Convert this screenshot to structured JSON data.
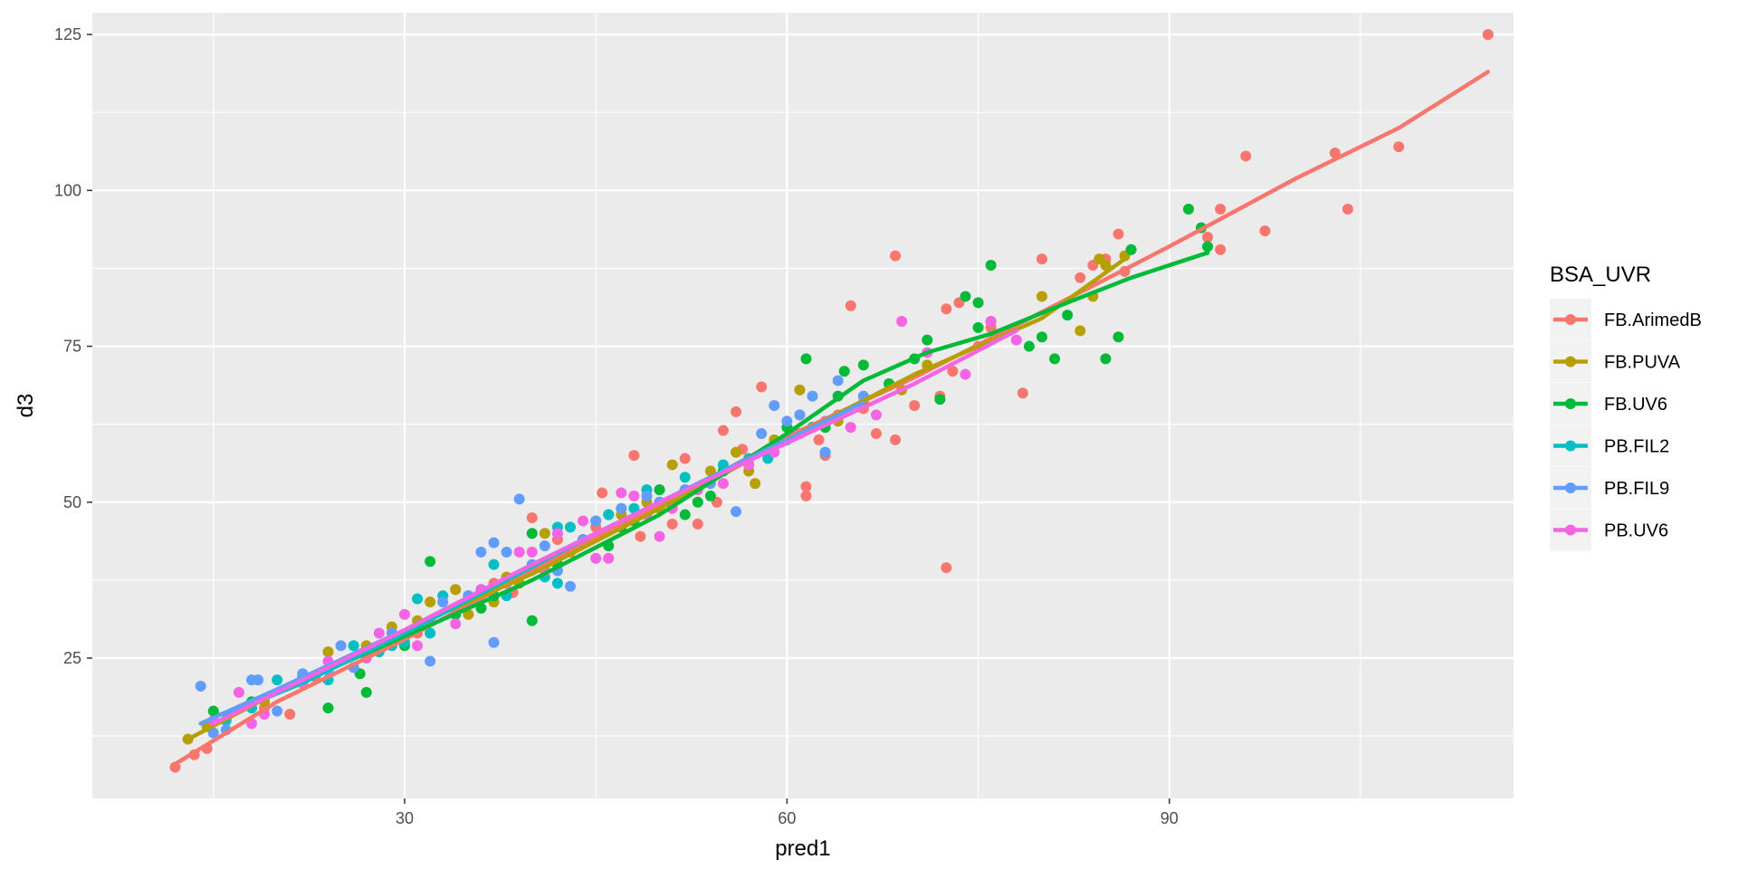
{
  "chart_data": {
    "type": "scatter",
    "xlabel": "pred1",
    "ylabel": "d3",
    "xlim": [
      5.5,
      117
    ],
    "ylim": [
      2.5,
      128.5
    ],
    "x_ticks": [
      30,
      60,
      90
    ],
    "y_ticks": [
      25,
      50,
      75,
      100,
      125
    ],
    "grid": true,
    "legend": {
      "title": "BSA_UVR",
      "position": "right"
    },
    "series": [
      {
        "name": "FB.ArimedB",
        "color": "#F8766D",
        "points": [
          [
            12,
            7.5
          ],
          [
            13.5,
            9.5
          ],
          [
            14.5,
            10.5
          ],
          [
            19,
            17
          ],
          [
            21,
            16
          ],
          [
            23,
            22
          ],
          [
            27,
            26
          ],
          [
            31,
            29
          ],
          [
            34,
            36
          ],
          [
            37,
            37
          ],
          [
            38.5,
            35.5
          ],
          [
            40,
            47.5
          ],
          [
            42,
            44
          ],
          [
            45,
            46
          ],
          [
            45.5,
            51.5
          ],
          [
            48,
            57.5
          ],
          [
            48.5,
            44.5
          ],
          [
            50,
            52
          ],
          [
            51,
            46.5
          ],
          [
            52,
            57
          ],
          [
            53,
            46.5
          ],
          [
            54.5,
            50
          ],
          [
            55,
            61.5
          ],
          [
            56,
            64.5
          ],
          [
            56.5,
            58.5
          ],
          [
            58,
            68.5
          ],
          [
            60,
            60
          ],
          [
            61,
            64
          ],
          [
            61.5,
            52.5
          ],
          [
            61.5,
            51
          ],
          [
            62.5,
            60
          ],
          [
            63,
            57.5
          ],
          [
            64,
            64
          ],
          [
            65,
            81.5
          ],
          [
            66,
            65
          ],
          [
            67,
            61
          ],
          [
            68.5,
            60
          ],
          [
            68.5,
            89.5
          ],
          [
            70,
            65.5
          ],
          [
            72,
            67
          ],
          [
            72.5,
            81
          ],
          [
            73,
            71
          ],
          [
            73.5,
            82
          ],
          [
            75,
            75
          ],
          [
            76,
            78
          ],
          [
            78.5,
            67.5
          ],
          [
            80,
            89
          ],
          [
            83,
            86
          ],
          [
            84,
            88
          ],
          [
            85,
            89
          ],
          [
            86,
            93
          ],
          [
            86.5,
            87
          ],
          [
            72.5,
            39.5
          ],
          [
            93,
            92.5
          ],
          [
            94,
            90.5
          ],
          [
            94,
            97
          ],
          [
            96,
            105.5
          ],
          [
            97.5,
            93.5
          ],
          [
            103,
            106
          ],
          [
            104,
            97
          ],
          [
            108,
            107
          ],
          [
            115,
            125
          ]
        ]
      },
      {
        "name": "FB.PUVA",
        "color": "#B79F00",
        "points": [
          [
            13,
            12
          ],
          [
            14.5,
            14
          ],
          [
            19,
            18
          ],
          [
            22,
            21
          ],
          [
            24,
            26
          ],
          [
            27,
            27
          ],
          [
            29,
            30
          ],
          [
            31,
            31
          ],
          [
            32,
            34
          ],
          [
            34,
            36
          ],
          [
            35,
            32
          ],
          [
            37,
            34
          ],
          [
            38,
            38
          ],
          [
            39,
            37
          ],
          [
            41,
            45
          ],
          [
            43,
            42
          ],
          [
            44,
            44
          ],
          [
            46,
            48
          ],
          [
            47,
            48
          ],
          [
            49,
            50
          ],
          [
            50,
            49
          ],
          [
            51,
            56
          ],
          [
            52,
            52
          ],
          [
            54,
            55
          ],
          [
            56,
            58
          ],
          [
            57,
            55
          ],
          [
            57.5,
            53
          ],
          [
            59,
            60
          ],
          [
            61,
            68
          ],
          [
            62,
            62
          ],
          [
            64,
            63
          ],
          [
            66,
            66
          ],
          [
            69,
            68
          ],
          [
            71,
            72
          ],
          [
            76,
            79
          ],
          [
            80,
            83
          ],
          [
            83,
            77.5
          ],
          [
            84,
            83
          ],
          [
            84.5,
            89
          ],
          [
            85,
            88
          ],
          [
            86.5,
            89.5
          ]
        ]
      },
      {
        "name": "FB.UV6",
        "color": "#00BA38",
        "points": [
          [
            15,
            16.5
          ],
          [
            18,
            18
          ],
          [
            22,
            22
          ],
          [
            24,
            17
          ],
          [
            26.5,
            22.5
          ],
          [
            27,
            19.5
          ],
          [
            30,
            27
          ],
          [
            32,
            40.5
          ],
          [
            34,
            32
          ],
          [
            36,
            33
          ],
          [
            37,
            35
          ],
          [
            38,
            37
          ],
          [
            40,
            31
          ],
          [
            40,
            45
          ],
          [
            42,
            40
          ],
          [
            44,
            44
          ],
          [
            46,
            43
          ],
          [
            47,
            46
          ],
          [
            48,
            47
          ],
          [
            50,
            52
          ],
          [
            52,
            48
          ],
          [
            53,
            50
          ],
          [
            54,
            51
          ],
          [
            55,
            55
          ],
          [
            57,
            57
          ],
          [
            60,
            62
          ],
          [
            61.5,
            73
          ],
          [
            62,
            62
          ],
          [
            63,
            62
          ],
          [
            64,
            67
          ],
          [
            64.5,
            71
          ],
          [
            66,
            72
          ],
          [
            68,
            69
          ],
          [
            70,
            73
          ],
          [
            71,
            76
          ],
          [
            72,
            66.5
          ],
          [
            74,
            83
          ],
          [
            75,
            82
          ],
          [
            75,
            78
          ],
          [
            76,
            88
          ],
          [
            79,
            75
          ],
          [
            80,
            76.5
          ],
          [
            81,
            73
          ],
          [
            82,
            80
          ],
          [
            85,
            73
          ],
          [
            86,
            76.5
          ],
          [
            87,
            90.5
          ],
          [
            91.5,
            97
          ],
          [
            92.5,
            94
          ],
          [
            93,
            91
          ]
        ]
      },
      {
        "name": "PB.FIL2",
        "color": "#00BFC4",
        "points": [
          [
            16,
            15
          ],
          [
            18,
            17
          ],
          [
            20,
            21.5
          ],
          [
            22,
            22
          ],
          [
            24,
            21.5
          ],
          [
            26,
            27
          ],
          [
            28,
            26
          ],
          [
            29,
            27
          ],
          [
            30,
            27.5
          ],
          [
            31,
            34.5
          ],
          [
            32,
            29
          ],
          [
            33,
            35
          ],
          [
            35,
            35
          ],
          [
            36,
            36
          ],
          [
            37,
            40
          ],
          [
            38,
            35
          ],
          [
            41,
            38
          ],
          [
            42,
            37
          ],
          [
            42,
            46
          ],
          [
            43,
            46
          ],
          [
            44,
            44
          ],
          [
            45,
            47
          ],
          [
            46,
            48
          ],
          [
            48,
            49
          ],
          [
            49,
            52
          ],
          [
            50,
            50
          ],
          [
            52,
            54
          ],
          [
            55,
            56
          ],
          [
            57,
            57
          ],
          [
            58.5,
            57
          ],
          [
            60,
            60
          ],
          [
            62,
            62
          ],
          [
            63,
            58
          ]
        ]
      },
      {
        "name": "PB.FIL9",
        "color": "#619CFF",
        "points": [
          [
            14,
            20.5
          ],
          [
            15,
            13
          ],
          [
            16,
            13.5
          ],
          [
            18,
            21.5
          ],
          [
            18.5,
            21.5
          ],
          [
            20,
            16.5
          ],
          [
            22,
            22.5
          ],
          [
            24,
            23
          ],
          [
            25,
            27
          ],
          [
            26,
            23.5
          ],
          [
            29,
            29
          ],
          [
            31,
            30
          ],
          [
            32,
            24.5
          ],
          [
            33,
            34
          ],
          [
            35,
            35
          ],
          [
            36,
            42
          ],
          [
            37,
            43.5
          ],
          [
            37,
            27.5
          ],
          [
            38,
            42
          ],
          [
            39,
            50.5
          ],
          [
            40,
            40
          ],
          [
            41,
            43
          ],
          [
            42,
            39
          ],
          [
            43,
            36.5
          ],
          [
            44,
            44
          ],
          [
            45,
            47
          ],
          [
            47,
            49
          ],
          [
            49,
            51
          ],
          [
            50,
            50
          ],
          [
            52,
            52
          ],
          [
            54,
            53
          ],
          [
            56,
            48.5
          ],
          [
            58,
            61
          ],
          [
            59,
            65.5
          ],
          [
            60,
            63
          ],
          [
            61,
            64
          ],
          [
            62,
            67
          ],
          [
            63,
            58
          ],
          [
            64,
            69.5
          ],
          [
            66,
            67
          ]
        ]
      },
      {
        "name": "PB.UV6",
        "color": "#F564E3",
        "points": [
          [
            15,
            15
          ],
          [
            17,
            19.5
          ],
          [
            18,
            14.5
          ],
          [
            19,
            16
          ],
          [
            22,
            21
          ],
          [
            24,
            24.5
          ],
          [
            27,
            25
          ],
          [
            28,
            29
          ],
          [
            30,
            32
          ],
          [
            31,
            27
          ],
          [
            32,
            31
          ],
          [
            34,
            30.5
          ],
          [
            36,
            36
          ],
          [
            38,
            37
          ],
          [
            39,
            42
          ],
          [
            40,
            42
          ],
          [
            41,
            39
          ],
          [
            42,
            45
          ],
          [
            44,
            47
          ],
          [
            45,
            41
          ],
          [
            46,
            41
          ],
          [
            47,
            51.5
          ],
          [
            48,
            51
          ],
          [
            49,
            48
          ],
          [
            50,
            44.5
          ],
          [
            51,
            49
          ],
          [
            53,
            52
          ],
          [
            55,
            53
          ],
          [
            57,
            56
          ],
          [
            59,
            58
          ],
          [
            61,
            61
          ],
          [
            63,
            63
          ],
          [
            65,
            62
          ],
          [
            67,
            64
          ],
          [
            69,
            79
          ],
          [
            71,
            74
          ],
          [
            74,
            70.5
          ],
          [
            76,
            79
          ],
          [
            78,
            76
          ]
        ]
      }
    ],
    "smooth_lines": [
      {
        "name": "FB.ArimedB",
        "color": "#F8766D",
        "points": [
          [
            12,
            8
          ],
          [
            20,
            18
          ],
          [
            30,
            28
          ],
          [
            40,
            39
          ],
          [
            50,
            49.5
          ],
          [
            60,
            60.5
          ],
          [
            70,
            70
          ],
          [
            80,
            80.5
          ],
          [
            90,
            91
          ],
          [
            100,
            102
          ],
          [
            108,
            110
          ],
          [
            115,
            119
          ]
        ]
      },
      {
        "name": "FB.PUVA",
        "color": "#B79F00",
        "points": [
          [
            13,
            12
          ],
          [
            20,
            19.5
          ],
          [
            30,
            29.5
          ],
          [
            40,
            38.5
          ],
          [
            50,
            49
          ],
          [
            60,
            60
          ],
          [
            70,
            70.5
          ],
          [
            80,
            79.5
          ],
          [
            86.5,
            89
          ]
        ]
      },
      {
        "name": "FB.UV6",
        "color": "#00BA38",
        "points": [
          [
            15,
            15.5
          ],
          [
            20,
            19.5
          ],
          [
            30,
            28.5
          ],
          [
            40,
            37.5
          ],
          [
            50,
            48
          ],
          [
            60,
            61
          ],
          [
            66,
            69.5
          ],
          [
            71,
            74
          ],
          [
            76,
            77
          ],
          [
            82,
            82
          ],
          [
            87,
            86
          ],
          [
            93,
            90
          ]
        ]
      },
      {
        "name": "PB.FIL2",
        "color": "#00BFC4",
        "points": [
          [
            16,
            16
          ],
          [
            22,
            21
          ],
          [
            30,
            29
          ],
          [
            38,
            37.5
          ],
          [
            45,
            45
          ],
          [
            52,
            52
          ],
          [
            58,
            58
          ],
          [
            63,
            62.5
          ]
        ]
      },
      {
        "name": "PB.FIL9",
        "color": "#619CFF",
        "points": [
          [
            14,
            14.5
          ],
          [
            20,
            20
          ],
          [
            30,
            29.5
          ],
          [
            40,
            40
          ],
          [
            50,
            50
          ],
          [
            58,
            58
          ],
          [
            66,
            66
          ]
        ]
      },
      {
        "name": "PB.UV6",
        "color": "#F564E3",
        "points": [
          [
            15,
            14.5
          ],
          [
            22,
            21.5
          ],
          [
            30,
            29.5
          ],
          [
            40,
            40
          ],
          [
            50,
            50
          ],
          [
            60,
            59.5
          ],
          [
            70,
            69
          ],
          [
            78,
            77.5
          ]
        ]
      }
    ]
  }
}
